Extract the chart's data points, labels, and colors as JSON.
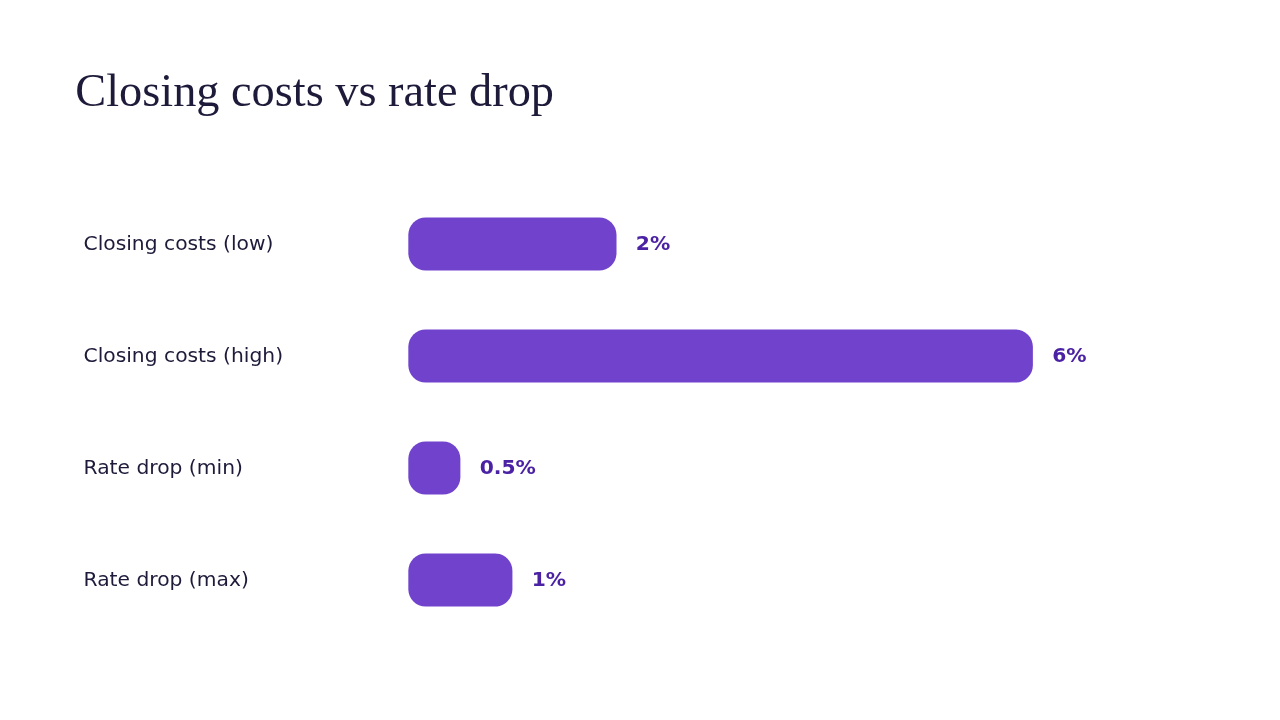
{
  "chart_data": {
    "type": "bar",
    "orientation": "horizontal",
    "title": "Closing costs vs rate drop",
    "categories": [
      "Closing costs (low)",
      "Closing costs (high)",
      "Rate drop (min)",
      "Rate drop (max)"
    ],
    "values": [
      2,
      6,
      0.5,
      1
    ],
    "value_labels": [
      "2%",
      "6%",
      "0.5%",
      "1%"
    ],
    "color": "#7142cc",
    "xlim": [
      0,
      6
    ],
    "tick_labels": "y",
    "grid": false
  }
}
